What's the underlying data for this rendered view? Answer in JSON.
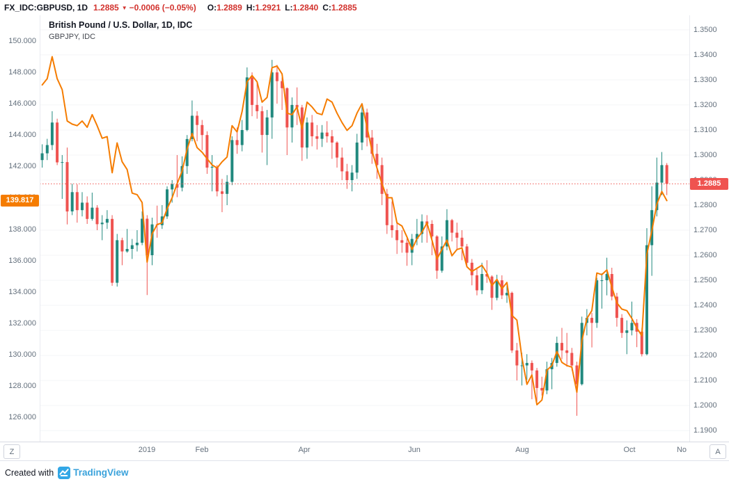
{
  "top_bar": {
    "symbol": "FX_IDC:GBPUSD, 1D",
    "price": "1.2885",
    "change": "−0.0006 (−0.05%)",
    "ohlc": {
      "o_label": "O:",
      "o": "1.2889",
      "h_label": "H:",
      "h": "1.2921",
      "l_label": "L:",
      "l": "1.2840",
      "c_label": "C:",
      "c": "1.2885"
    }
  },
  "legend": {
    "title": "British Pound / U.S. Dollar, 1D, IDC",
    "subtitle": "GBPJPY, IDC"
  },
  "price_tags": {
    "left_label": "139.817",
    "left_value": 139.817,
    "right_label": "1.2885",
    "right_value": 1.2885
  },
  "axes": {
    "left_ticks": [
      {
        "label": "150.000",
        "value": 150
      },
      {
        "label": "148.000",
        "value": 148
      },
      {
        "label": "146.000",
        "value": 146
      },
      {
        "label": "144.000",
        "value": 144
      },
      {
        "label": "142.000",
        "value": 142
      },
      {
        "label": "140.000",
        "value": 140
      },
      {
        "label": "138.000",
        "value": 138
      },
      {
        "label": "136.000",
        "value": 136
      },
      {
        "label": "134.000",
        "value": 134
      },
      {
        "label": "132.000",
        "value": 132
      },
      {
        "label": "130.000",
        "value": 130
      },
      {
        "label": "128.000",
        "value": 128
      },
      {
        "label": "126.000",
        "value": 126
      }
    ],
    "right_ticks": [
      {
        "label": "1.3500",
        "value": 1.35
      },
      {
        "label": "1.3400",
        "value": 1.34
      },
      {
        "label": "1.3300",
        "value": 1.33
      },
      {
        "label": "1.3200",
        "value": 1.32
      },
      {
        "label": "1.3100",
        "value": 1.31
      },
      {
        "label": "1.3000",
        "value": 1.3
      },
      {
        "label": "1.2900",
        "value": 1.29
      },
      {
        "label": "1.2800",
        "value": 1.28
      },
      {
        "label": "1.2700",
        "value": 1.27
      },
      {
        "label": "1.2600",
        "value": 1.26
      },
      {
        "label": "1.2500",
        "value": 1.25
      },
      {
        "label": "1.2400",
        "value": 1.24
      },
      {
        "label": "1.2300",
        "value": 1.23
      },
      {
        "label": "1.2200",
        "value": 1.22
      },
      {
        "label": "1.2100",
        "value": 1.21
      },
      {
        "label": "1.2000",
        "value": 1.2
      },
      {
        "label": "1.1900",
        "value": 1.19
      }
    ],
    "time_labels": [
      {
        "label": "2019",
        "day": 42
      },
      {
        "label": "Feb",
        "day": 64
      },
      {
        "label": "Apr",
        "day": 105
      },
      {
        "label": "Jun",
        "day": 149
      },
      {
        "label": "Aug",
        "day": 192
      },
      {
        "label": "Oct",
        "day": 235
      },
      {
        "label": "No",
        "day": 256
      }
    ]
  },
  "badges": {
    "left": "Z",
    "right": "A"
  },
  "footer": {
    "created_with": "Created with",
    "brand": "TradingView"
  },
  "colors": {
    "up": "#21897e",
    "down": "#ef5350",
    "line": "#f57c00",
    "grid": "#f4f5f7",
    "axis_border": "#e9ebf0",
    "pane_border": "#d8dbe2",
    "axis_text": "#64707d",
    "price_line": "#ef5350",
    "left_tag_bg": "#f57c00",
    "right_tag_bg": "#ef5350"
  },
  "chart_data": {
    "type": "candlestick",
    "title": "British Pound / U.S. Dollar, 1D, IDC",
    "subtitle": "GBPJPY, IDC",
    "x_axis_note": "daily bars, Nov 2018 - Oct 2019, trading-day index 0-259, sampled every 2 days",
    "x_range_days": 260,
    "day_step": 2,
    "right_axis": {
      "max": 1.3558,
      "min": 1.1856
    },
    "left_axis": {
      "max": 151.64,
      "min": 124.45
    },
    "price_line_value": 1.2885,
    "grid": "faint-horizontal",
    "series": [
      {
        "name": "GBPUSD",
        "type": "candlestick",
        "axis": "right",
        "ohlc": [
          [
            1.298,
            1.3043,
            1.295,
            1.3007
          ],
          [
            1.3007,
            1.3065,
            1.298,
            1.304
          ],
          [
            1.304,
            1.3175,
            1.302,
            1.313
          ],
          [
            1.313,
            1.3145,
            1.296,
            1.2971
          ],
          [
            1.2971,
            1.3,
            1.2825,
            1.2972
          ],
          [
            1.2972,
            1.303,
            1.2723,
            1.2775
          ],
          [
            1.2775,
            1.2885,
            1.276,
            1.2852
          ],
          [
            1.2852,
            1.2883,
            1.273,
            1.278
          ],
          [
            1.278,
            1.2852,
            1.2755,
            1.281
          ],
          [
            1.281,
            1.2835,
            1.2725,
            1.2745
          ],
          [
            1.2745,
            1.285,
            1.2738,
            1.279
          ],
          [
            1.279,
            1.28,
            1.27,
            1.2724
          ],
          [
            1.2724,
            1.276,
            1.266,
            1.273
          ],
          [
            1.273,
            1.278,
            1.2705,
            1.2745
          ],
          [
            1.2745,
            1.276,
            1.2478,
            1.249
          ],
          [
            1.249,
            1.2685,
            1.2475,
            1.266
          ],
          [
            1.266,
            1.267,
            1.256,
            1.2615
          ],
          [
            1.2615,
            1.2705,
            1.261,
            1.2625
          ],
          [
            1.2625,
            1.2665,
            1.2585,
            1.264
          ],
          [
            1.264,
            1.27,
            1.2615,
            1.265
          ],
          [
            1.265,
            1.2775,
            1.264,
            1.2746
          ],
          [
            1.2746,
            1.276,
            1.2441,
            1.26
          ],
          [
            1.26,
            1.275,
            1.256,
            1.2723
          ],
          [
            1.2723,
            1.2798,
            1.267,
            1.272
          ],
          [
            1.272,
            1.28,
            1.2705,
            1.2755
          ],
          [
            1.2755,
            1.2875,
            1.2745,
            1.2863
          ],
          [
            1.2863,
            1.29,
            1.281,
            1.2884
          ],
          [
            1.2884,
            1.3,
            1.2832,
            1.287
          ],
          [
            1.287,
            1.2995,
            1.2855,
            1.2956
          ],
          [
            1.2956,
            1.308,
            1.2925,
            1.3064
          ],
          [
            1.3064,
            1.3218,
            1.3055,
            1.3157
          ],
          [
            1.3157,
            1.3175,
            1.3055,
            1.312
          ],
          [
            1.312,
            1.314,
            1.302,
            1.308
          ],
          [
            1.308,
            1.3095,
            1.2925,
            1.295
          ],
          [
            1.295,
            1.3,
            1.2855,
            1.2953
          ],
          [
            1.2953,
            1.296,
            1.2835,
            1.2855
          ],
          [
            1.2855,
            1.2905,
            1.2772,
            1.2845
          ],
          [
            1.2845,
            1.292,
            1.28,
            1.2893
          ],
          [
            1.2893,
            1.3075,
            1.288,
            1.306
          ],
          [
            1.306,
            1.311,
            1.3005,
            1.304
          ],
          [
            1.304,
            1.314,
            1.3015,
            1.31
          ],
          [
            1.31,
            1.335,
            1.3095,
            1.331
          ],
          [
            1.331,
            1.333,
            1.3155,
            1.32
          ],
          [
            1.32,
            1.329,
            1.3145,
            1.3175
          ],
          [
            1.3175,
            1.3195,
            1.301,
            1.308
          ],
          [
            1.308,
            1.318,
            1.296,
            1.315
          ],
          [
            1.315,
            1.338,
            1.3065,
            1.333
          ],
          [
            1.333,
            1.336,
            1.3205,
            1.3295
          ],
          [
            1.3295,
            1.331,
            1.318,
            1.3267
          ],
          [
            1.3267,
            1.327,
            1.3,
            1.311
          ],
          [
            1.311,
            1.323,
            1.305,
            1.32
          ],
          [
            1.32,
            1.327,
            1.312,
            1.319
          ],
          [
            1.319,
            1.32,
            1.2977,
            1.303
          ],
          [
            1.303,
            1.315,
            1.2985,
            1.313
          ],
          [
            1.313,
            1.316,
            1.3035,
            1.3075
          ],
          [
            1.3075,
            1.312,
            1.3022,
            1.3065
          ],
          [
            1.3065,
            1.312,
            1.3032,
            1.309
          ],
          [
            1.309,
            1.3135,
            1.305,
            1.3075
          ],
          [
            1.3075,
            1.31,
            1.2985,
            1.305
          ],
          [
            1.305,
            1.3055,
            1.295,
            1.299
          ],
          [
            1.299,
            1.303,
            1.29,
            1.2935
          ],
          [
            1.2935,
            1.2965,
            1.2865,
            1.29
          ],
          [
            1.29,
            1.296,
            1.2855,
            1.293
          ],
          [
            1.293,
            1.3085,
            1.2905,
            1.305
          ],
          [
            1.305,
            1.3195,
            1.302,
            1.317
          ],
          [
            1.317,
            1.3185,
            1.3035,
            1.307
          ],
          [
            1.307,
            1.31,
            1.2965,
            1.3005
          ],
          [
            1.3005,
            1.3045,
            1.2905,
            1.296
          ],
          [
            1.296,
            1.299,
            1.28,
            1.2845
          ],
          [
            1.2845,
            1.2865,
            1.2685,
            1.272
          ],
          [
            1.272,
            1.2815,
            1.267,
            1.27
          ],
          [
            1.27,
            1.273,
            1.2605,
            1.266
          ],
          [
            1.266,
            1.27,
            1.261,
            1.265
          ],
          [
            1.265,
            1.2672,
            1.2558,
            1.261
          ],
          [
            1.261,
            1.2685,
            1.256,
            1.2665
          ],
          [
            1.2665,
            1.2745,
            1.264,
            1.2685
          ],
          [
            1.2685,
            1.2763,
            1.265,
            1.2735
          ],
          [
            1.2735,
            1.276,
            1.265,
            1.2725
          ],
          [
            1.2725,
            1.274,
            1.26,
            1.2675
          ],
          [
            1.2675,
            1.268,
            1.2506,
            1.2538
          ],
          [
            1.2538,
            1.2675,
            1.253,
            1.2635
          ],
          [
            1.2635,
            1.2784,
            1.262,
            1.274
          ],
          [
            1.274,
            1.2745,
            1.2655,
            1.269
          ],
          [
            1.269,
            1.273,
            1.262,
            1.267
          ],
          [
            1.267,
            1.27,
            1.258,
            1.2635
          ],
          [
            1.2635,
            1.2645,
            1.2555,
            1.257
          ],
          [
            1.257,
            1.2585,
            1.248,
            1.252
          ],
          [
            1.252,
            1.2545,
            1.244,
            1.246
          ],
          [
            1.246,
            1.257,
            1.2445,
            1.2525
          ],
          [
            1.2525,
            1.258,
            1.249,
            1.2515
          ],
          [
            1.2515,
            1.252,
            1.2382,
            1.243
          ],
          [
            1.243,
            1.2522,
            1.242,
            1.25
          ],
          [
            1.25,
            1.252,
            1.2425,
            1.244
          ],
          [
            1.244,
            1.249,
            1.241,
            1.245
          ],
          [
            1.245,
            1.2455,
            1.221,
            1.222
          ],
          [
            1.222,
            1.225,
            1.21,
            1.216
          ],
          [
            1.216,
            1.221,
            1.208,
            1.216
          ],
          [
            1.216,
            1.2205,
            1.2102,
            1.217
          ],
          [
            1.217,
            1.218,
            1.2025,
            1.214
          ],
          [
            1.214,
            1.215,
            1.2015,
            1.207
          ],
          [
            1.207,
            1.2115,
            1.204,
            1.206
          ],
          [
            1.206,
            1.2175,
            1.2045,
            1.2145
          ],
          [
            1.2145,
            1.219,
            1.2065,
            1.217
          ],
          [
            1.217,
            1.2275,
            1.2155,
            1.225
          ],
          [
            1.225,
            1.231,
            1.2185,
            1.222
          ],
          [
            1.222,
            1.229,
            1.2155,
            1.221
          ],
          [
            1.221,
            1.223,
            1.214,
            1.216
          ],
          [
            1.216,
            1.2175,
            1.1959,
            1.2085
          ],
          [
            1.2085,
            1.2355,
            1.208,
            1.233
          ],
          [
            1.233,
            1.2385,
            1.228,
            1.235
          ],
          [
            1.235,
            1.237,
            1.2232,
            1.233
          ],
          [
            1.233,
            1.251,
            1.231,
            1.25
          ],
          [
            1.25,
            1.2528,
            1.2387,
            1.25
          ],
          [
            1.25,
            1.259,
            1.244,
            1.2525
          ],
          [
            1.2525,
            1.255,
            1.242,
            1.2435
          ],
          [
            1.2435,
            1.245,
            1.2315,
            1.235
          ],
          [
            1.235,
            1.2365,
            1.227,
            1.229
          ],
          [
            1.229,
            1.234,
            1.2205,
            1.23
          ],
          [
            1.23,
            1.2415,
            1.228,
            1.233
          ],
          [
            1.233,
            1.2345,
            1.2233,
            1.2295
          ],
          [
            1.2295,
            1.231,
            1.2196,
            1.2205
          ],
          [
            1.2205,
            1.2708,
            1.22,
            1.264
          ],
          [
            1.264,
            1.2875,
            1.2518,
            1.278
          ],
          [
            1.278,
            1.299,
            1.2755,
            1.289
          ],
          [
            1.289,
            1.3012,
            1.284,
            1.296
          ],
          [
            1.296,
            1.2968,
            1.284,
            1.2885
          ]
        ]
      },
      {
        "name": "GBPJPY",
        "type": "line",
        "axis": "left",
        "values": [
          147.2,
          147.6,
          149.0,
          147.6,
          146.9,
          144.9,
          144.7,
          144.6,
          144.9,
          144.5,
          145.3,
          144.6,
          143.8,
          143.9,
          141.6,
          143.5,
          142.3,
          141.8,
          140.3,
          140.2,
          139.7,
          135.9,
          137.7,
          138.3,
          138.4,
          139.3,
          140.0,
          140.9,
          141.7,
          143.1,
          144.1,
          143.2,
          142.9,
          142.5,
          142.1,
          141.9,
          142.3,
          142.6,
          144.6,
          144.2,
          145.5,
          147.4,
          147.8,
          147.4,
          146.1,
          146.4,
          148.3,
          148.4,
          147.9,
          145.4,
          145.3,
          145.8,
          144.4,
          146.1,
          145.8,
          145.4,
          145.3,
          146.3,
          146.1,
          145.4,
          144.8,
          144.3,
          144.6,
          145.4,
          146.0,
          144.5,
          143.0,
          141.9,
          140.9,
          140.0,
          140.0,
          138.4,
          138.2,
          137.5,
          136.7,
          137.4,
          137.8,
          138.4,
          137.3,
          136.1,
          136.7,
          137.3,
          136.3,
          136.7,
          136.8,
          135.6,
          135.3,
          135.5,
          135.7,
          135.2,
          134.4,
          134.8,
          134.2,
          134.6,
          132.5,
          132.2,
          129.8,
          128.1,
          128.7,
          126.8,
          127.1,
          129.0,
          129.3,
          130.2,
          129.5,
          129.3,
          129.2,
          127.6,
          130.9,
          132.3,
          132.8,
          135.2,
          135.1,
          135.4,
          134.3,
          133.3,
          132.9,
          132.8,
          132.3,
          131.7,
          131.2,
          136.4,
          137.9,
          139.6,
          140.4,
          139.82
        ]
      }
    ]
  }
}
